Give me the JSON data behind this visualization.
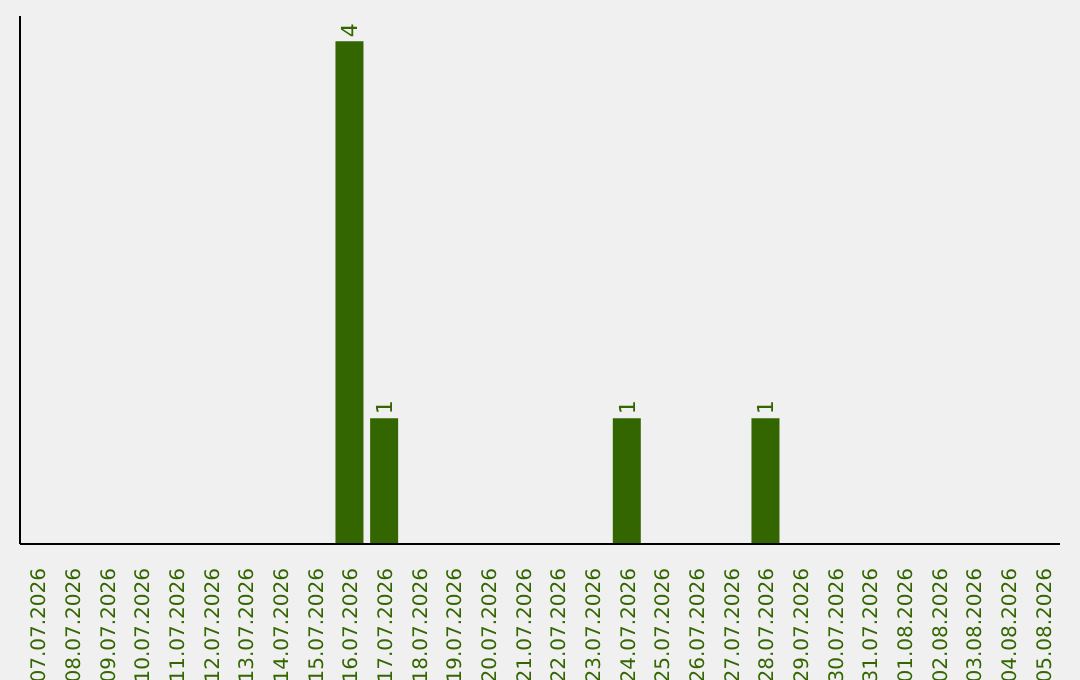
{
  "chart_data": {
    "type": "bar",
    "categories": [
      "07.07.2026",
      "08.07.2026",
      "09.07.2026",
      "10.07.2026",
      "11.07.2026",
      "12.07.2026",
      "13.07.2026",
      "14.07.2026",
      "15.07.2026",
      "16.07.2026",
      "17.07.2026",
      "18.07.2026",
      "19.07.2026",
      "20.07.2026",
      "21.07.2026",
      "22.07.2026",
      "23.07.2026",
      "24.07.2026",
      "25.07.2026",
      "26.07.2026",
      "27.07.2026",
      "28.07.2026",
      "29.07.2026",
      "30.07.2026",
      "31.07.2026",
      "01.08.2026",
      "02.08.2026",
      "03.08.2026",
      "04.08.2026",
      "05.08.2026"
    ],
    "values": [
      0,
      0,
      0,
      0,
      0,
      0,
      0,
      0,
      0,
      4,
      1,
      0,
      0,
      0,
      0,
      0,
      0,
      1,
      0,
      0,
      0,
      1,
      0,
      0,
      0,
      0,
      0,
      0,
      0,
      0
    ],
    "value_labels": [
      null,
      null,
      null,
      null,
      null,
      null,
      null,
      null,
      null,
      "4",
      "1",
      null,
      null,
      null,
      null,
      null,
      null,
      "1",
      null,
      null,
      null,
      "1",
      null,
      null,
      null,
      null,
      null,
      null,
      null,
      null
    ],
    "color": "#336600",
    "tick_labels": "x",
    "grid": false,
    "legend": false
  }
}
